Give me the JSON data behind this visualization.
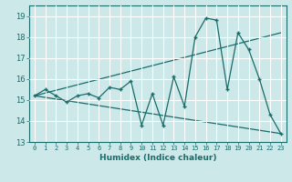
{
  "xlabel": "Humidex (Indice chaleur)",
  "ylabel": "",
  "xlim": [
    -0.5,
    23.5
  ],
  "ylim": [
    13,
    19.5
  ],
  "xticks": [
    0,
    1,
    2,
    3,
    4,
    5,
    6,
    7,
    8,
    9,
    10,
    11,
    12,
    13,
    14,
    15,
    16,
    17,
    18,
    19,
    20,
    21,
    22,
    23
  ],
  "yticks": [
    13,
    14,
    15,
    16,
    17,
    18,
    19
  ],
  "bg_color": "#cce8e8",
  "line_color": "#1a6b6b",
  "grid_color": "#ffffff",
  "data_x": [
    0,
    1,
    2,
    3,
    4,
    5,
    6,
    7,
    8,
    9,
    10,
    11,
    12,
    13,
    14,
    15,
    16,
    17,
    18,
    19,
    20,
    21,
    22,
    23
  ],
  "data_y": [
    15.2,
    15.5,
    15.2,
    14.9,
    15.2,
    15.3,
    15.1,
    15.6,
    15.5,
    15.9,
    13.8,
    15.3,
    13.8,
    16.1,
    14.7,
    18.0,
    18.9,
    18.8,
    15.5,
    18.2,
    17.4,
    16.0,
    14.3,
    13.4
  ],
  "upper_line_x": [
    0,
    23
  ],
  "upper_line_y": [
    15.2,
    18.2
  ],
  "lower_line_x": [
    0,
    23
  ],
  "lower_line_y": [
    15.2,
    13.4
  ]
}
